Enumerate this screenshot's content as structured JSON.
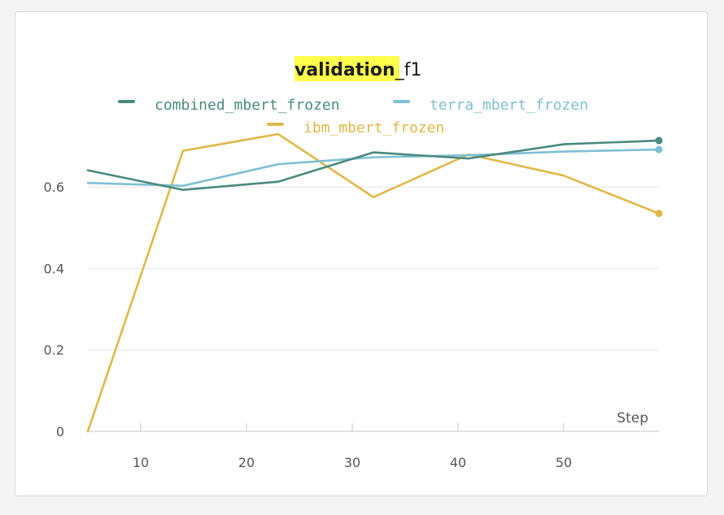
{
  "chart_data": {
    "type": "line",
    "title_highlight": "validation",
    "title_rest": "_f1",
    "xlabel": "Step",
    "ylabel": "",
    "xlim": [
      5,
      59
    ],
    "ylim": [
      0,
      0.76
    ],
    "x_ticks": [
      10,
      20,
      30,
      40,
      50
    ],
    "y_ticks": [
      0,
      0.2,
      0.4,
      0.6
    ],
    "x_tick_labels": [
      "10",
      "20",
      "30",
      "40",
      "50"
    ],
    "y_tick_labels": [
      "0",
      "0.2",
      "0.4",
      "0.6"
    ],
    "grid": "horizontal",
    "legend_position": "top",
    "series": [
      {
        "name": "combined_mbert_frozen",
        "color": "#4a8a7f",
        "x": [
          5,
          14,
          23,
          32,
          41,
          50,
          59
        ],
        "y": [
          0.641,
          0.593,
          0.613,
          0.685,
          0.67,
          0.705,
          0.714
        ]
      },
      {
        "name": "terra_mbert_frozen",
        "color": "#7fbfd4",
        "x": [
          5,
          14,
          23,
          32,
          41,
          50,
          59
        ],
        "y": [
          0.61,
          0.603,
          0.656,
          0.673,
          0.678,
          0.687,
          0.692
        ]
      },
      {
        "name": "ibm_mbert_frozen",
        "color": "#e0b84a",
        "x": [
          5,
          14,
          23,
          32,
          41,
          50,
          59
        ],
        "y": [
          0.0,
          0.689,
          0.73,
          0.575,
          0.68,
          0.628,
          0.535
        ]
      }
    ]
  }
}
